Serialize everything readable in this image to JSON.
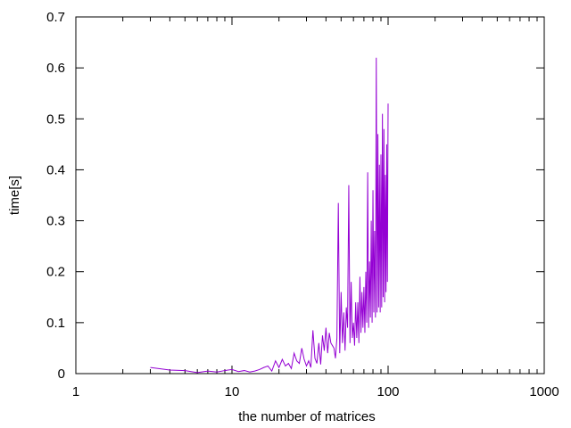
{
  "chart_data": {
    "type": "line",
    "title": "",
    "xlabel": "the number of matrices",
    "ylabel": "time[s]",
    "x_scale": "log",
    "xlim": [
      1,
      1000
    ],
    "ylim": [
      0,
      0.7
    ],
    "x_ticks": [
      {
        "value": 1,
        "label": "1"
      },
      {
        "value": 10,
        "label": "10"
      },
      {
        "value": 100,
        "label": "100"
      },
      {
        "value": 1000,
        "label": "1000"
      }
    ],
    "y_ticks": [
      {
        "value": 0,
        "label": "0"
      },
      {
        "value": 0.1,
        "label": "0.1"
      },
      {
        "value": 0.2,
        "label": "0.2"
      },
      {
        "value": 0.3,
        "label": "0.3"
      },
      {
        "value": 0.4,
        "label": "0.4"
      },
      {
        "value": 0.5,
        "label": "0.5"
      },
      {
        "value": 0.6,
        "label": "0.6"
      },
      {
        "value": 0.7,
        "label": "0.7"
      }
    ],
    "grid": false,
    "legend": "none",
    "series": [
      {
        "color": "#9400d3",
        "x": [
          3,
          4,
          5,
          6,
          7,
          8,
          9,
          10,
          11,
          12,
          13,
          14,
          15,
          16,
          17,
          18,
          19,
          20,
          21,
          22,
          23,
          24,
          25,
          26,
          27,
          28,
          29,
          30,
          31,
          32,
          33,
          34,
          35,
          36,
          37,
          38,
          39,
          40,
          41,
          42,
          43,
          44,
          45,
          46,
          47,
          48,
          49,
          50,
          51,
          52,
          53,
          54,
          55,
          56,
          57,
          58,
          59,
          60,
          61,
          62,
          63,
          64,
          65,
          66,
          67,
          68,
          69,
          70,
          71,
          72,
          73,
          74,
          75,
          76,
          77,
          78,
          79,
          80,
          81,
          82,
          83,
          84,
          85,
          86,
          87,
          88,
          89,
          90,
          91,
          92,
          93,
          94,
          95,
          96,
          97,
          98,
          99,
          100
        ],
        "y": [
          0.012,
          0.007,
          0.006,
          0.002,
          0.005,
          0.003,
          0.006,
          0.008,
          0.004,
          0.006,
          0.003,
          0.005,
          0.008,
          0.012,
          0.015,
          0.005,
          0.025,
          0.012,
          0.028,
          0.015,
          0.02,
          0.01,
          0.04,
          0.025,
          0.02,
          0.05,
          0.028,
          0.015,
          0.025,
          0.012,
          0.085,
          0.03,
          0.02,
          0.06,
          0.018,
          0.075,
          0.045,
          0.09,
          0.04,
          0.08,
          0.06,
          0.055,
          0.05,
          0.03,
          0.07,
          0.335,
          0.04,
          0.16,
          0.06,
          0.12,
          0.045,
          0.13,
          0.09,
          0.37,
          0.06,
          0.18,
          0.07,
          0.1,
          0.055,
          0.14,
          0.07,
          0.14,
          0.06,
          0.19,
          0.08,
          0.16,
          0.09,
          0.17,
          0.08,
          0.2,
          0.1,
          0.395,
          0.09,
          0.22,
          0.11,
          0.3,
          0.1,
          0.36,
          0.12,
          0.28,
          0.11,
          0.62,
          0.12,
          0.47,
          0.13,
          0.41,
          0.12,
          0.43,
          0.13,
          0.51,
          0.15,
          0.48,
          0.14,
          0.39,
          0.16,
          0.45,
          0.18,
          0.53
        ]
      }
    ]
  }
}
